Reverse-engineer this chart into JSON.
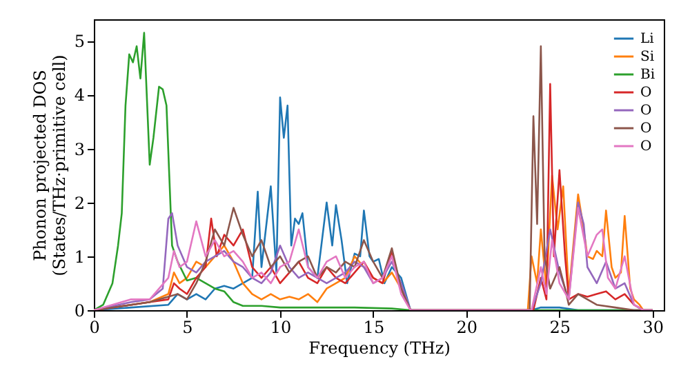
{
  "chart_data": {
    "type": "line",
    "xlabel": "Frequency (THz)",
    "ylabel": "Phonon projected DOS\n(States/THz·primitive cell)",
    "xlim": [
      0,
      30.6
    ],
    "ylim": [
      0,
      5.4
    ],
    "xticks": [
      0,
      5,
      10,
      15,
      20,
      25,
      30
    ],
    "yticks": [
      0,
      1,
      2,
      3,
      4,
      5
    ],
    "grid": false,
    "legend": "top right",
    "marker": "none",
    "line_style": "solid",
    "series": [
      {
        "name": "Li",
        "color": "#1f77b4",
        "x": [
          0,
          2,
          4,
          4.5,
          5,
          5.5,
          6,
          6.5,
          7,
          7.5,
          8,
          8.5,
          8.8,
          9,
          9.5,
          9.8,
          10,
          10.2,
          10.4,
          10.6,
          10.8,
          11,
          11.2,
          11.5,
          12,
          12.5,
          12.8,
          13,
          13.3,
          13.6,
          14,
          14.3,
          14.5,
          14.8,
          15,
          15.3,
          15.6,
          16,
          16.5,
          17,
          23.5,
          24,
          25,
          26,
          30
        ],
        "values": [
          0,
          0.05,
          0.1,
          0.3,
          0.2,
          0.3,
          0.2,
          0.4,
          0.45,
          0.4,
          0.5,
          0.6,
          2.2,
          0.8,
          2.3,
          0.7,
          3.95,
          3.2,
          3.8,
          1.2,
          1.7,
          1.6,
          1.8,
          0.8,
          0.6,
          2.0,
          1.2,
          1.95,
          1.3,
          0.5,
          1.05,
          1.0,
          1.85,
          1.0,
          0.9,
          0.95,
          0.5,
          0.8,
          0.6,
          0,
          0,
          0.05,
          0.05,
          0,
          0
        ]
      },
      {
        "name": "Si",
        "color": "#ff7f0e",
        "x": [
          0,
          2,
          3,
          4,
          4.3,
          4.6,
          5,
          5.5,
          6,
          6.5,
          7,
          7.5,
          8,
          8.5,
          9,
          9.5,
          10,
          10.5,
          11,
          11.5,
          12,
          12.5,
          13,
          13.5,
          14,
          14.5,
          15,
          15.5,
          16,
          16.5,
          17,
          23.3,
          23.5,
          23.8,
          24,
          24.3,
          24.6,
          24.9,
          25.2,
          25.5,
          26,
          26.3,
          26.5,
          26.8,
          27,
          27.3,
          27.5,
          27.8,
          28,
          28.3,
          28.5,
          28.8,
          29,
          29.3,
          29.5,
          30
        ],
        "values": [
          0,
          0.1,
          0.15,
          0.3,
          0.7,
          0.5,
          0.6,
          0.9,
          0.8,
          1.0,
          1.2,
          0.9,
          0.5,
          0.3,
          0.2,
          0.3,
          0.2,
          0.25,
          0.2,
          0.3,
          0.15,
          0.4,
          0.5,
          0.6,
          1.0,
          0.8,
          0.6,
          0.5,
          0.7,
          0.4,
          0,
          0,
          1.0,
          0.5,
          1.5,
          0.4,
          2.5,
          1.5,
          2.3,
          0.3,
          2.15,
          1.5,
          1.0,
          0.95,
          1.1,
          1.0,
          1.85,
          0.8,
          0.6,
          0.7,
          1.75,
          0.4,
          0.2,
          0.1,
          0,
          0
        ]
      },
      {
        "name": "Bi",
        "color": "#2ca02c",
        "x": [
          0,
          0.5,
          1,
          1.3,
          1.5,
          1.7,
          1.9,
          2.1,
          2.3,
          2.5,
          2.7,
          3.0,
          3.2,
          3.5,
          3.7,
          3.9,
          4.2,
          4.5,
          5,
          5.5,
          6,
          6.5,
          7,
          7.5,
          8,
          9,
          10,
          12,
          14,
          16,
          17,
          23,
          30
        ],
        "values": [
          0,
          0.1,
          0.5,
          1.2,
          1.8,
          3.8,
          4.75,
          4.6,
          4.9,
          4.3,
          5.15,
          2.7,
          3.2,
          4.15,
          4.1,
          3.8,
          1.2,
          0.9,
          0.55,
          0.6,
          0.5,
          0.4,
          0.35,
          0.15,
          0.08,
          0.08,
          0.05,
          0.05,
          0.05,
          0.03,
          0,
          0,
          0
        ]
      },
      {
        "name": "O",
        "color": "#d62728",
        "x": [
          0,
          2,
          3,
          4,
          4.3,
          4.6,
          5,
          5.5,
          6,
          6.3,
          6.6,
          7,
          7.5,
          8,
          8.5,
          9,
          9.5,
          10,
          10.5,
          11,
          11.5,
          12,
          12.5,
          13,
          13.5,
          14,
          14.5,
          15,
          15.5,
          16,
          16.5,
          17,
          23.6,
          24,
          24.3,
          24.5,
          24.7,
          25,
          25.3,
          25.5,
          26,
          26.5,
          27,
          27.5,
          28,
          28.5,
          29,
          29.5,
          30
        ],
        "values": [
          0,
          0.1,
          0.15,
          0.2,
          0.5,
          0.4,
          0.3,
          0.6,
          0.8,
          1.7,
          1.0,
          1.4,
          1.2,
          1.5,
          0.8,
          0.6,
          0.8,
          0.5,
          0.7,
          0.9,
          0.6,
          0.5,
          0.8,
          0.6,
          0.5,
          0.7,
          0.9,
          0.6,
          0.5,
          1.1,
          0.4,
          0,
          0,
          0.6,
          0.2,
          4.2,
          1.0,
          2.6,
          1.0,
          0.2,
          0.3,
          0.25,
          0.3,
          0.35,
          0.2,
          0.3,
          0.1,
          0,
          0
        ]
      },
      {
        "name": "O",
        "color": "#9467bd",
        "x": [
          0,
          2,
          3,
          3.7,
          4,
          4.2,
          4.5,
          5,
          5.5,
          6,
          6.5,
          7,
          7.5,
          8,
          8.5,
          9,
          9.5,
          10,
          10.5,
          11,
          11.5,
          12,
          12.5,
          13,
          13.5,
          14,
          14.5,
          15,
          15.5,
          16,
          16.5,
          17,
          23.5,
          24,
          24.5,
          25,
          25.5,
          26,
          26.3,
          26.5,
          27,
          27.5,
          28,
          28.5,
          29,
          29.5,
          30
        ],
        "values": [
          0,
          0.15,
          0.2,
          0.4,
          1.7,
          1.8,
          1.2,
          0.8,
          0.7,
          0.9,
          1.0,
          1.1,
          0.9,
          0.8,
          0.6,
          0.5,
          0.7,
          1.2,
          0.8,
          0.6,
          0.7,
          0.6,
          0.5,
          0.6,
          0.7,
          0.9,
          0.8,
          0.5,
          0.6,
          0.9,
          0.5,
          0,
          0,
          0.5,
          1.5,
          0.7,
          0.2,
          2.0,
          1.6,
          0.8,
          0.5,
          0.9,
          0.4,
          0.5,
          0.1,
          0,
          0
        ]
      },
      {
        "name": "O",
        "color": "#8c564b",
        "x": [
          0,
          2,
          3,
          4,
          4.5,
          5,
          5.5,
          6,
          6.5,
          7,
          7.5,
          8,
          8.5,
          9,
          9.5,
          10,
          10.5,
          11,
          11.5,
          12,
          12.5,
          13,
          13.5,
          14,
          14.5,
          15,
          15.5,
          16,
          16.5,
          17,
          23.4,
          23.6,
          23.8,
          24,
          24.2,
          24.5,
          25,
          25.3,
          25.5,
          26,
          26.5,
          27,
          28,
          29,
          30
        ],
        "values": [
          0,
          0.1,
          0.15,
          0.25,
          0.3,
          0.2,
          0.5,
          0.9,
          1.5,
          1.2,
          1.9,
          1.4,
          1.0,
          1.3,
          0.8,
          1.0,
          0.7,
          0.9,
          1.0,
          0.6,
          0.8,
          0.7,
          0.9,
          0.8,
          1.3,
          0.9,
          0.6,
          1.15,
          0.4,
          0,
          0,
          3.6,
          1.6,
          4.9,
          1.0,
          0.4,
          0.8,
          0.4,
          0.1,
          0.3,
          0.2,
          0.1,
          0.05,
          0,
          0
        ]
      },
      {
        "name": "O",
        "color": "#e377c2",
        "x": [
          0,
          2,
          3,
          4,
          4.3,
          4.6,
          5,
          5.5,
          6,
          6.5,
          7,
          7.5,
          8,
          8.5,
          9,
          9.5,
          10,
          10.5,
          11,
          11.5,
          12,
          12.5,
          13,
          13.5,
          14,
          14.5,
          15,
          15.5,
          16,
          16.5,
          17,
          23.5,
          24,
          24.3,
          24.6,
          25,
          25.5,
          26,
          26.5,
          27,
          27.3,
          27.6,
          28,
          28.5,
          29,
          29.5,
          30
        ],
        "values": [
          0,
          0.2,
          0.2,
          0.6,
          1.1,
          0.8,
          0.9,
          1.65,
          1.0,
          1.3,
          1.0,
          1.1,
          0.9,
          0.6,
          0.7,
          0.5,
          0.8,
          0.9,
          1.5,
          0.8,
          0.6,
          0.9,
          1.0,
          0.6,
          0.8,
          0.9,
          0.5,
          0.6,
          1.0,
          0.3,
          0,
          0,
          0.8,
          0.3,
          1.3,
          0.5,
          0.2,
          1.9,
          1.0,
          1.4,
          1.5,
          0.6,
          0.4,
          1.0,
          0.1,
          0,
          0
        ]
      }
    ]
  }
}
